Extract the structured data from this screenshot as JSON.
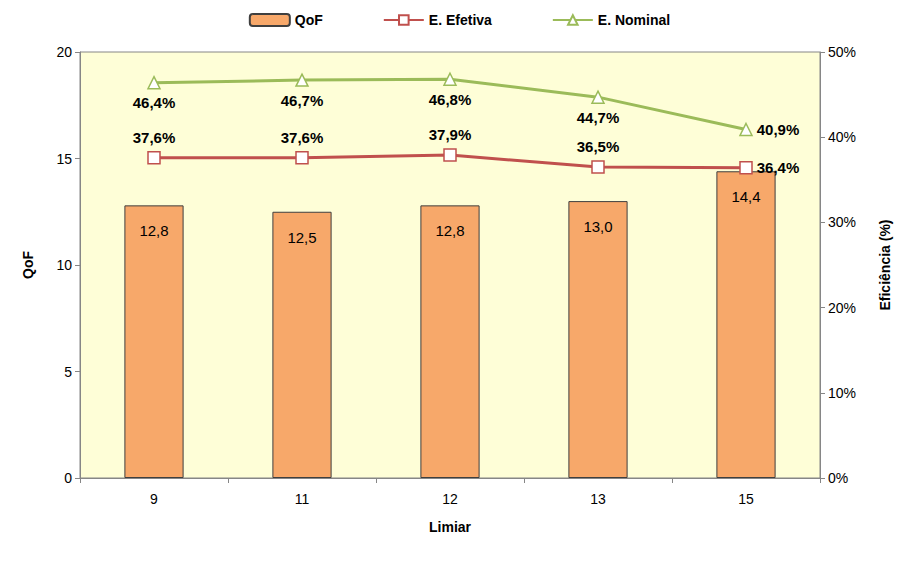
{
  "chart_data": {
    "type": "bar",
    "x_label": "Limiar",
    "y_label": "QoF",
    "y2_label": "Eficiência (%)",
    "categories": [
      "9",
      "11",
      "12",
      "13",
      "15"
    ],
    "ylim": [
      0,
      20
    ],
    "yticks": [
      0,
      5,
      10,
      15,
      20
    ],
    "y2lim": [
      0,
      50
    ],
    "y2ticks": [
      {
        "value": 0,
        "label": "0%"
      },
      {
        "value": 10,
        "label": "10%"
      },
      {
        "value": 20,
        "label": "20%"
      },
      {
        "value": 30,
        "label": "30%"
      },
      {
        "value": 40,
        "label": "40%"
      },
      {
        "value": 50,
        "label": "50%"
      }
    ],
    "grid": false,
    "legend": "top",
    "data_labels": true,
    "series": [
      {
        "name": "QoF",
        "type": "bar",
        "color": "#F7A86A",
        "values": [
          12.8,
          12.5,
          12.8,
          13.0,
          14.4
        ],
        "value_labels": [
          "12,8",
          "12,5",
          "12,8",
          "13,0",
          "14,4"
        ]
      },
      {
        "name": "E. Efetiva",
        "type": "line",
        "axis": "y2",
        "color": "#C0504D",
        "marker": "square",
        "values": [
          37.6,
          37.6,
          37.9,
          36.5,
          36.4
        ],
        "value_labels": [
          "37,6%",
          "37,6%",
          "37,9%",
          "36,5%",
          "36,4%"
        ]
      },
      {
        "name": "E. Nominal",
        "type": "line",
        "axis": "y2",
        "color": "#9BBB59",
        "marker": "triangle",
        "values": [
          46.4,
          46.7,
          46.8,
          44.7,
          40.9
        ],
        "value_labels": [
          "46,4%",
          "46,7%",
          "46,8%",
          "44,7%",
          "40,9%"
        ]
      }
    ]
  }
}
